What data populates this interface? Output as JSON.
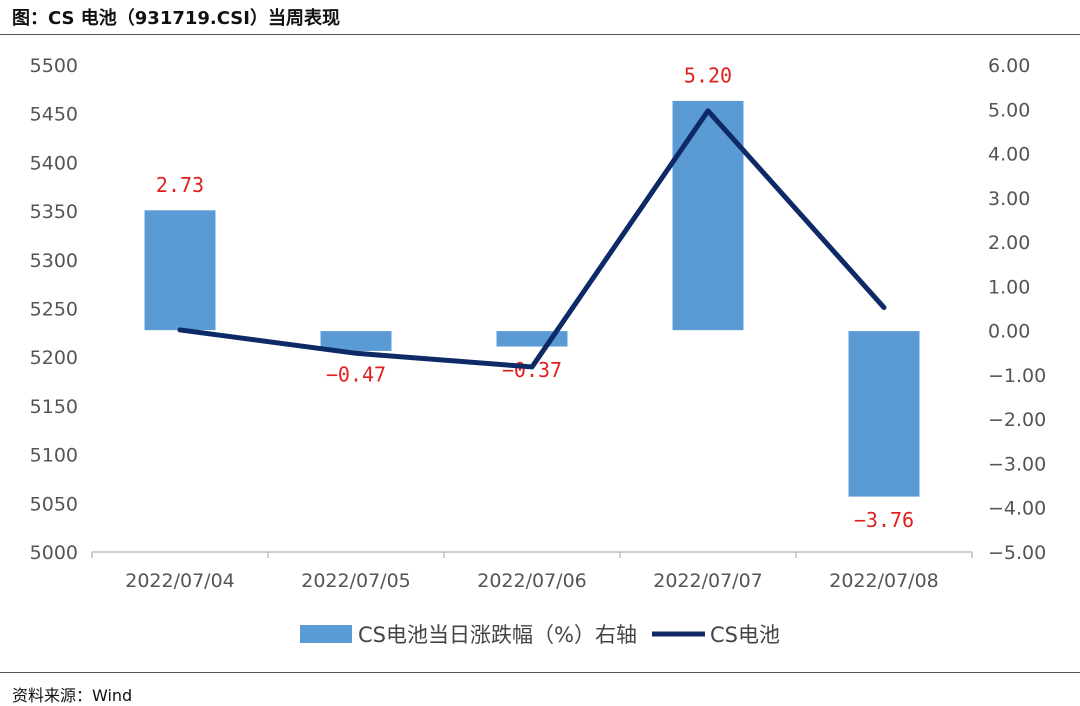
{
  "header": {
    "title": "图：CS 电池（931719.CSI）当周表现"
  },
  "footer": {
    "source": "资料来源：Wind"
  },
  "chart_data": {
    "type": "bar+line",
    "categories": [
      "2022/07/04",
      "2022/07/05",
      "2022/07/06",
      "2022/07/07",
      "2022/07/08"
    ],
    "series": [
      {
        "name": "CS电池当日涨跌幅（%）右轴",
        "type": "bar",
        "axis": "right",
        "values": [
          2.73,
          -0.47,
          -0.37,
          5.2,
          -3.76
        ],
        "labels": [
          "2.73",
          "−0.47",
          "−0.37",
          "5.20",
          "−3.76"
        ],
        "color": "#5b9bd5"
      },
      {
        "name": "CS电池",
        "type": "line",
        "axis": "left",
        "values": [
          5228,
          5204,
          5190,
          5453,
          5251
        ],
        "color": "#0d2a66"
      }
    ],
    "left_axis": {
      "ylim": [
        5000,
        5500
      ],
      "ticks": [
        "5500",
        "5450",
        "5400",
        "5350",
        "5300",
        "5250",
        "5200",
        "5150",
        "5100",
        "5050",
        "5000"
      ]
    },
    "right_axis": {
      "ylim": [
        -5,
        6
      ],
      "ticks": [
        "6.00",
        "5.00",
        "4.00",
        "3.00",
        "2.00",
        "1.00",
        "0.00",
        "−1.00",
        "−2.00",
        "−3.00",
        "−4.00",
        "−5.00"
      ]
    },
    "legend": {
      "position": "bottom",
      "items": [
        "CS电池当日涨跌幅（%）右轴",
        "CS电池"
      ]
    }
  }
}
